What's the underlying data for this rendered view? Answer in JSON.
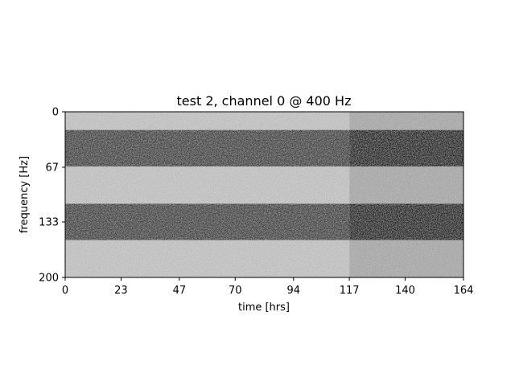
{
  "chart_data": {
    "type": "heatmap",
    "title": "test 2, channel 0 @ 400 Hz",
    "xlabel": "time [hrs]",
    "ylabel": "frequency [Hz]",
    "xlim": [
      0,
      164
    ],
    "ylim": [
      200,
      0
    ],
    "y_inverted": true,
    "x_ticks": [
      "0",
      "23",
      "47",
      "70",
      "94",
      "117",
      "140",
      "164"
    ],
    "x_tick_values": [
      0,
      23,
      47,
      70,
      94,
      117,
      140,
      164
    ],
    "y_ticks": [
      "0",
      "67",
      "133",
      "200"
    ],
    "y_tick_values": [
      0,
      67,
      133,
      200
    ],
    "colormap": "grayscale",
    "grid": false,
    "bands": [
      {
        "freq_start": 0,
        "freq_end": 22,
        "level": "light"
      },
      {
        "freq_start": 22,
        "freq_end": 66,
        "level": "dark"
      },
      {
        "freq_start": 66,
        "freq_end": 111,
        "level": "light"
      },
      {
        "freq_start": 111,
        "freq_end": 155,
        "level": "dark"
      },
      {
        "freq_start": 155,
        "freq_end": 200,
        "level": "light"
      }
    ],
    "transition_time": 117,
    "colors": {
      "light": "#c9c9c9",
      "dark": "#3a3a3a",
      "after_transition_light": "#a8a8a8",
      "after_transition_dark": "#1c1c1c"
    }
  }
}
